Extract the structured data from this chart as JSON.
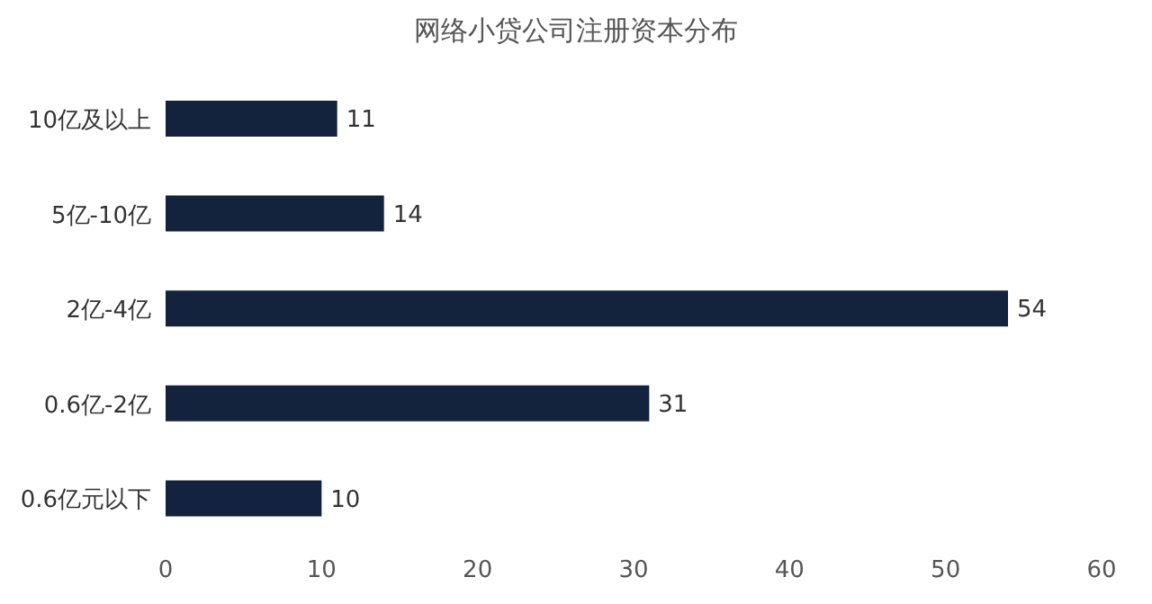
{
  "chart_data": {
    "type": "bar",
    "orientation": "horizontal",
    "title": "网络小贷公司注册资本分布",
    "categories": [
      "10亿及以上",
      "5亿-10亿",
      "2亿-4亿",
      "0.6亿-2亿",
      "0.6亿元以下"
    ],
    "values": [
      11,
      14,
      54,
      31,
      10
    ],
    "color": "#13223d",
    "xlim": [
      0,
      60
    ],
    "xticks": [
      0,
      10,
      20,
      30,
      40,
      50,
      60
    ],
    "grid": false,
    "data_labels": true
  }
}
